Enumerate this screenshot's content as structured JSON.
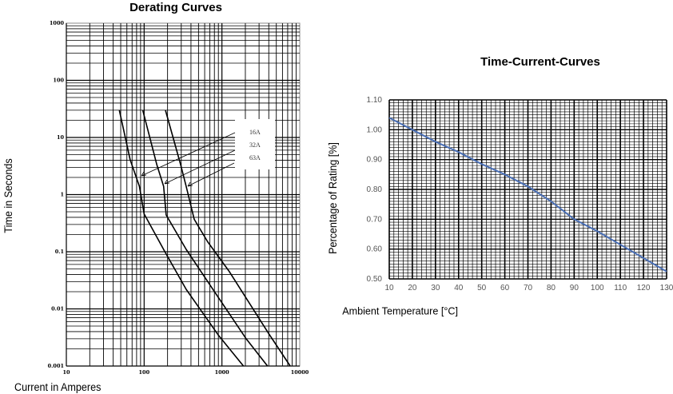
{
  "chart_data": [
    {
      "type": "line",
      "title": "Derating Curves",
      "xlabel": "Current in Amperes",
      "ylabel": "Time in Seconds",
      "xscale": "log",
      "yscale": "log",
      "xlim": [
        10,
        10000
      ],
      "ylim": [
        0.001,
        1000
      ],
      "xticks": [
        "10",
        "100",
        "1000",
        "10000"
      ],
      "yticks": [
        "1000",
        "100",
        "10",
        "1",
        "0.1",
        "0.01",
        "0.001"
      ],
      "grid": true,
      "series": [
        {
          "name": "16A",
          "x": [
            48,
            66,
            87,
            100,
            185,
            347,
            895,
            1890
          ],
          "y": [
            30,
            4.1,
            1.4,
            0.46,
            0.1,
            0.022,
            0.0035,
            0.001
          ]
        },
        {
          "name": "32A",
          "x": [
            96,
            146,
            178,
            192,
            347,
            895,
            2050,
            3850
          ],
          "y": [
            30,
            3.3,
            1.4,
            0.44,
            0.11,
            0.016,
            0.003,
            0.001
          ]
        },
        {
          "name": "63A",
          "x": [
            188,
            295,
            347,
            440,
            653,
            1230,
            3990,
            7540
          ],
          "y": [
            30,
            3.3,
            1.4,
            0.37,
            0.15,
            0.046,
            0.0037,
            0.001
          ]
        }
      ],
      "legend": [
        "16A",
        "32A",
        "63A"
      ],
      "colors": {
        "curve": "#000000",
        "legend_text": "#333333"
      }
    },
    {
      "type": "line",
      "title": "Time-Current-Curves",
      "xlabel": "Ambient Temperature [°C]",
      "ylabel": "Percentage of Rating [%]",
      "xlim": [
        10,
        130
      ],
      "ylim": [
        0.5,
        1.1
      ],
      "xticks": [
        "10",
        "20",
        "30",
        "40",
        "50",
        "60",
        "70",
        "80",
        "90",
        "100",
        "110",
        "120",
        "130"
      ],
      "yticks": [
        "0.50",
        "0.60",
        "0.70",
        "0.80",
        "0.90",
        "1.00",
        "1.10"
      ],
      "grid": true,
      "series": [
        {
          "x": [
            10,
            20,
            30,
            40,
            50,
            60,
            70,
            80,
            90,
            100,
            110,
            120,
            130
          ],
          "y": [
            1.04,
            1.0,
            0.96,
            0.925,
            0.885,
            0.85,
            0.81,
            0.76,
            0.7,
            0.66,
            0.615,
            0.57,
            0.525
          ]
        }
      ],
      "colors": {
        "line": "#4a6fb5"
      }
    }
  ]
}
